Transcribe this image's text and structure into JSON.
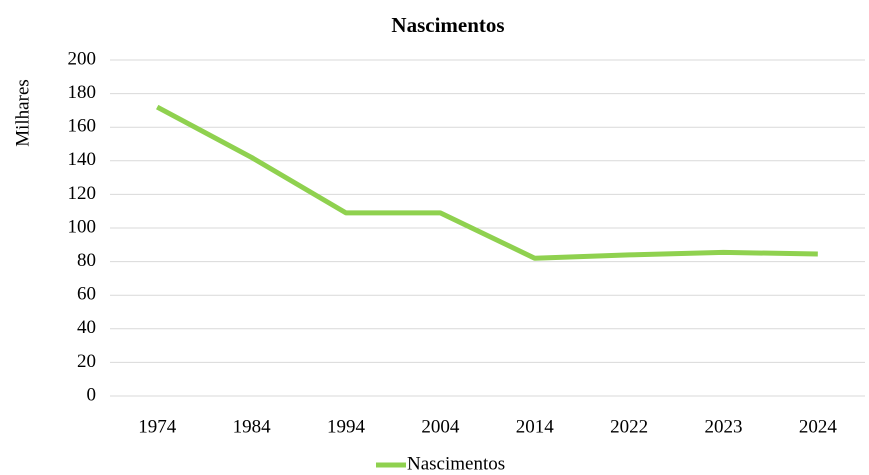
{
  "chart_data": {
    "type": "line",
    "title": "Nascimentos",
    "y_label": "Milhares",
    "categories": [
      "1974",
      "1984",
      "1994",
      "2004",
      "2014",
      "2022",
      "2023",
      "2024"
    ],
    "series": [
      {
        "name": "Nascimentos",
        "color": "#8fd14f",
        "values": [
          172,
          142,
          109,
          109,
          82,
          84,
          85.5,
          84.5
        ]
      }
    ],
    "ylim": [
      0,
      200
    ],
    "yticks": [
      0,
      20,
      40,
      60,
      80,
      100,
      120,
      140,
      160,
      180,
      200
    ],
    "grid": true,
    "legend": "bottom"
  }
}
